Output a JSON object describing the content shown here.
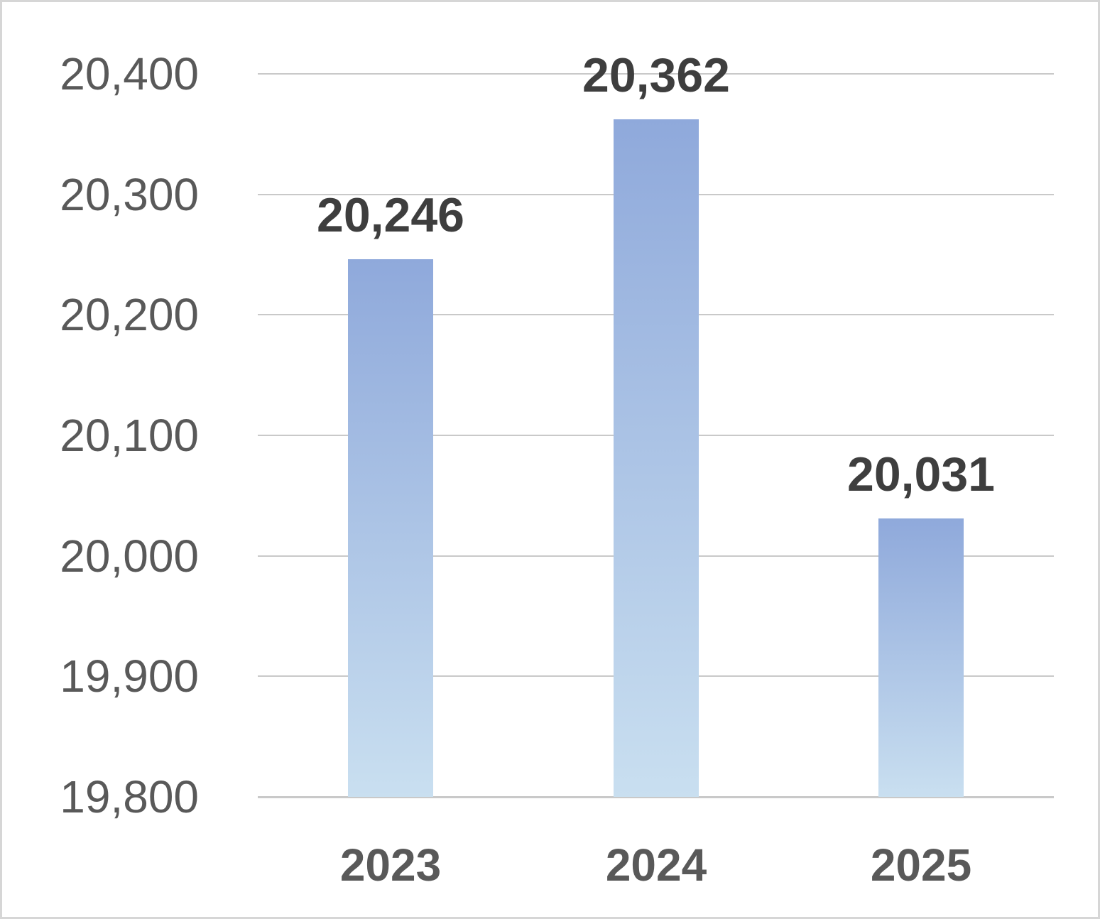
{
  "chart_data": {
    "type": "bar",
    "title": "",
    "xlabel": "",
    "ylabel": "",
    "categories": [
      "2023",
      "2024",
      "2025"
    ],
    "values": [
      20246,
      20362,
      20031
    ],
    "data_labels": [
      "20,246",
      "20,362",
      "20,031"
    ],
    "ylim": [
      19800,
      20400
    ],
    "ytick_step": 100,
    "yticks": [
      {
        "value": 20400,
        "label": "20,400"
      },
      {
        "value": 20300,
        "label": "20,300"
      },
      {
        "value": 20200,
        "label": "20,200"
      },
      {
        "value": 20100,
        "label": "20,100"
      },
      {
        "value": 20000,
        "label": "20,000"
      },
      {
        "value": 19900,
        "label": "19,900"
      },
      {
        "value": 19800,
        "label": "19,800"
      }
    ],
    "grid": "horizontal",
    "legend": "none",
    "colors": {
      "bar_gradient_top": "#8fa9db",
      "bar_gradient_bottom": "#c9dff0",
      "gridline": "#c9c9c9",
      "axis_line": "#c9c9c9",
      "ytick_text": "#595959",
      "category_text": "#595959",
      "data_label_text": "#3e3e3e",
      "frame_border": "#d6d6d6",
      "background": "#ffffff"
    }
  }
}
